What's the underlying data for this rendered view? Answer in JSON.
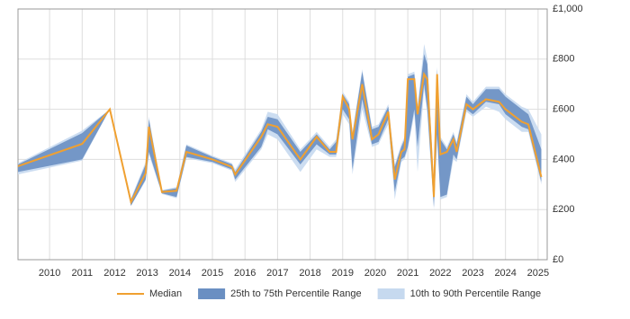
{
  "chart_data": {
    "type": "range-line",
    "x": [
      2009.03,
      2011.0,
      2011.85,
      2012.5,
      2012.95,
      2013.05,
      2013.45,
      2013.9,
      2014.2,
      2015.0,
      2015.6,
      2015.7,
      2016.5,
      2016.7,
      2017.0,
      2017.7,
      2018.2,
      2018.6,
      2018.8,
      2019.0,
      2019.2,
      2019.3,
      2019.6,
      2019.9,
      2020.1,
      2020.4,
      2020.6,
      2020.8,
      2020.9,
      2021.0,
      2021.2,
      2021.3,
      2021.5,
      2021.6,
      2021.8,
      2021.9,
      2022.0,
      2022.2,
      2022.4,
      2022.5,
      2022.8,
      2023.0,
      2023.4,
      2023.8,
      2024.0,
      2024.5,
      2024.7,
      2025.1
    ],
    "series": [
      {
        "name": "10th to 90th Percentile Range",
        "color": "#c6d9ef",
        "lower": [
          340,
          395,
          600,
          215,
          315,
          420,
          262,
          245,
          405,
          385,
          355,
          310,
          440,
          500,
          480,
          350,
          440,
          410,
          410,
          580,
          540,
          340,
          600,
          450,
          460,
          540,
          240,
          390,
          400,
          440,
          580,
          350,
          680,
          580,
          200,
          480,
          240,
          250,
          400,
          390,
          590,
          570,
          610,
          590,
          560,
          510,
          510,
          300
        ],
        "upper": [
          385,
          515,
          600,
          245,
          390,
          570,
          278,
          290,
          460,
          415,
          385,
          360,
          520,
          590,
          580,
          440,
          510,
          450,
          480,
          670,
          630,
          510,
          760,
          530,
          540,
          620,
          380,
          460,
          490,
          740,
          750,
          610,
          860,
          800,
          310,
          770,
          490,
          450,
          510,
          470,
          660,
          630,
          690,
          690,
          660,
          610,
          600,
          500
        ]
      },
      {
        "name": "25th to 75th Percentile Range",
        "color": "#6a8fc2",
        "lower": [
          350,
          400,
          600,
          215,
          320,
          430,
          265,
          250,
          410,
          390,
          360,
          320,
          450,
          520,
          500,
          380,
          460,
          420,
          420,
          600,
          560,
          360,
          640,
          460,
          470,
          560,
          270,
          400,
          410,
          450,
          600,
          450,
          700,
          600,
          210,
          500,
          250,
          260,
          420,
          400,
          600,
          580,
          630,
          620,
          580,
          530,
          520,
          310
        ],
        "upper": [
          380,
          505,
          600,
          240,
          380,
          560,
          275,
          285,
          455,
          410,
          380,
          350,
          510,
          570,
          560,
          430,
          500,
          440,
          470,
          660,
          620,
          500,
          750,
          520,
          530,
          610,
          370,
          450,
          480,
          730,
          740,
          600,
          820,
          780,
          300,
          760,
          480,
          440,
          500,
          460,
          650,
          620,
          680,
          680,
          650,
          600,
          580,
          440
        ]
      },
      {
        "name": "Median",
        "color": "#f0a030",
        "values": [
          373,
          462,
          600,
          230,
          345,
          530,
          270,
          275,
          430,
          400,
          370,
          340,
          490,
          540,
          530,
          400,
          490,
          430,
          430,
          650,
          600,
          480,
          700,
          480,
          500,
          590,
          320,
          430,
          440,
          720,
          720,
          580,
          740,
          720,
          250,
          740,
          420,
          430,
          480,
          430,
          620,
          600,
          640,
          630,
          600,
          550,
          540,
          330
        ]
      }
    ],
    "xlim": [
      2009.03,
      2025.28
    ],
    "xticks": [
      2010,
      2011,
      2012,
      2013,
      2014,
      2015,
      2016,
      2017,
      2018,
      2019,
      2020,
      2021,
      2022,
      2023,
      2024,
      2025
    ],
    "ylim": [
      0,
      1000
    ],
    "yticks": [
      {
        "value": 0,
        "label": "£0"
      },
      {
        "value": 200,
        "label": "£200"
      },
      {
        "value": 400,
        "label": "£400"
      },
      {
        "value": 600,
        "label": "£600"
      },
      {
        "value": 800,
        "label": "£800"
      },
      {
        "value": 1000,
        "label": "£1,000"
      }
    ],
    "grid": true
  }
}
